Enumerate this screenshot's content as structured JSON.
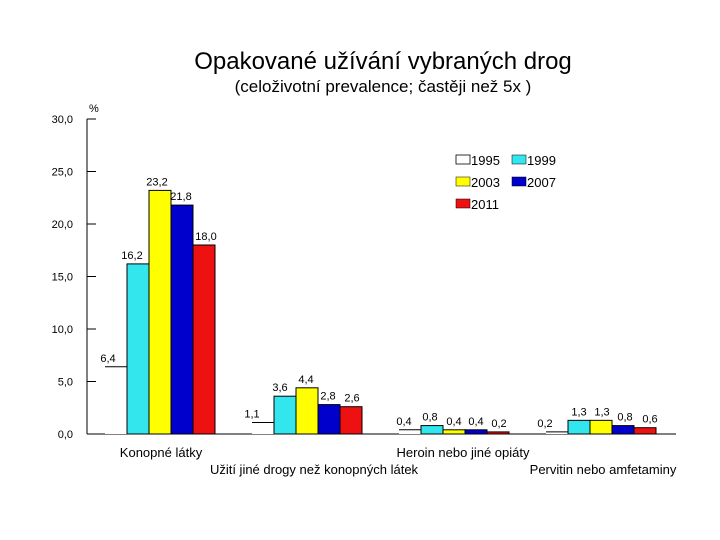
{
  "title": "Opakované užívání vybraných drog",
  "subtitle": "(celoživotní prevalence; častěji než 5x )",
  "colors": {
    "1995": "#ffffff",
    "1999": "#33e6ee",
    "2003": "#ffff00",
    "2007": "#0000cc",
    "2011": "#ee1111"
  },
  "chart_data": {
    "type": "bar",
    "title": "Opakované užívání vybraných drog",
    "subtitle": "(celoživotní prevalence; častěji než 5x )",
    "ylabel": "%",
    "xlabel": "",
    "ylim": [
      0,
      30
    ],
    "yticks": [
      "0,0",
      "5,0",
      "10,0",
      "15,0",
      "20,0",
      "25,0",
      "30,0"
    ],
    "categories": [
      "Konopné látky",
      "Užití jiné drogy než konopných látek",
      "Heroin nebo jiné opiáty",
      "Pervitin nebo amfetaminy"
    ],
    "series": [
      {
        "name": "1995",
        "values": [
          6.4,
          1.1,
          0.4,
          0.2
        ],
        "labels": [
          "6,4",
          "1,1",
          "0,4",
          "0,2"
        ]
      },
      {
        "name": "1999",
        "values": [
          16.2,
          3.6,
          0.8,
          1.3
        ],
        "labels": [
          "16,2",
          "3,6",
          "0,8",
          "1,3"
        ]
      },
      {
        "name": "2003",
        "values": [
          23.2,
          4.4,
          0.4,
          1.3
        ],
        "labels": [
          "23,2",
          "4,4",
          "0,4",
          "1,3"
        ]
      },
      {
        "name": "2007",
        "values": [
          21.8,
          2.8,
          0.4,
          0.8
        ],
        "labels": [
          "21,8",
          "2,8",
          "0,4",
          "0,8"
        ]
      },
      {
        "name": "2011",
        "values": [
          18.0,
          2.6,
          0.2,
          0.6
        ],
        "labels": [
          "18,0",
          "2,6",
          "0,2",
          "0,6"
        ]
      }
    ],
    "legend": {
      "placement": "top-right",
      "entries": [
        "1995",
        "1999",
        "2003",
        "2007",
        "2011"
      ]
    },
    "grid": false
  }
}
